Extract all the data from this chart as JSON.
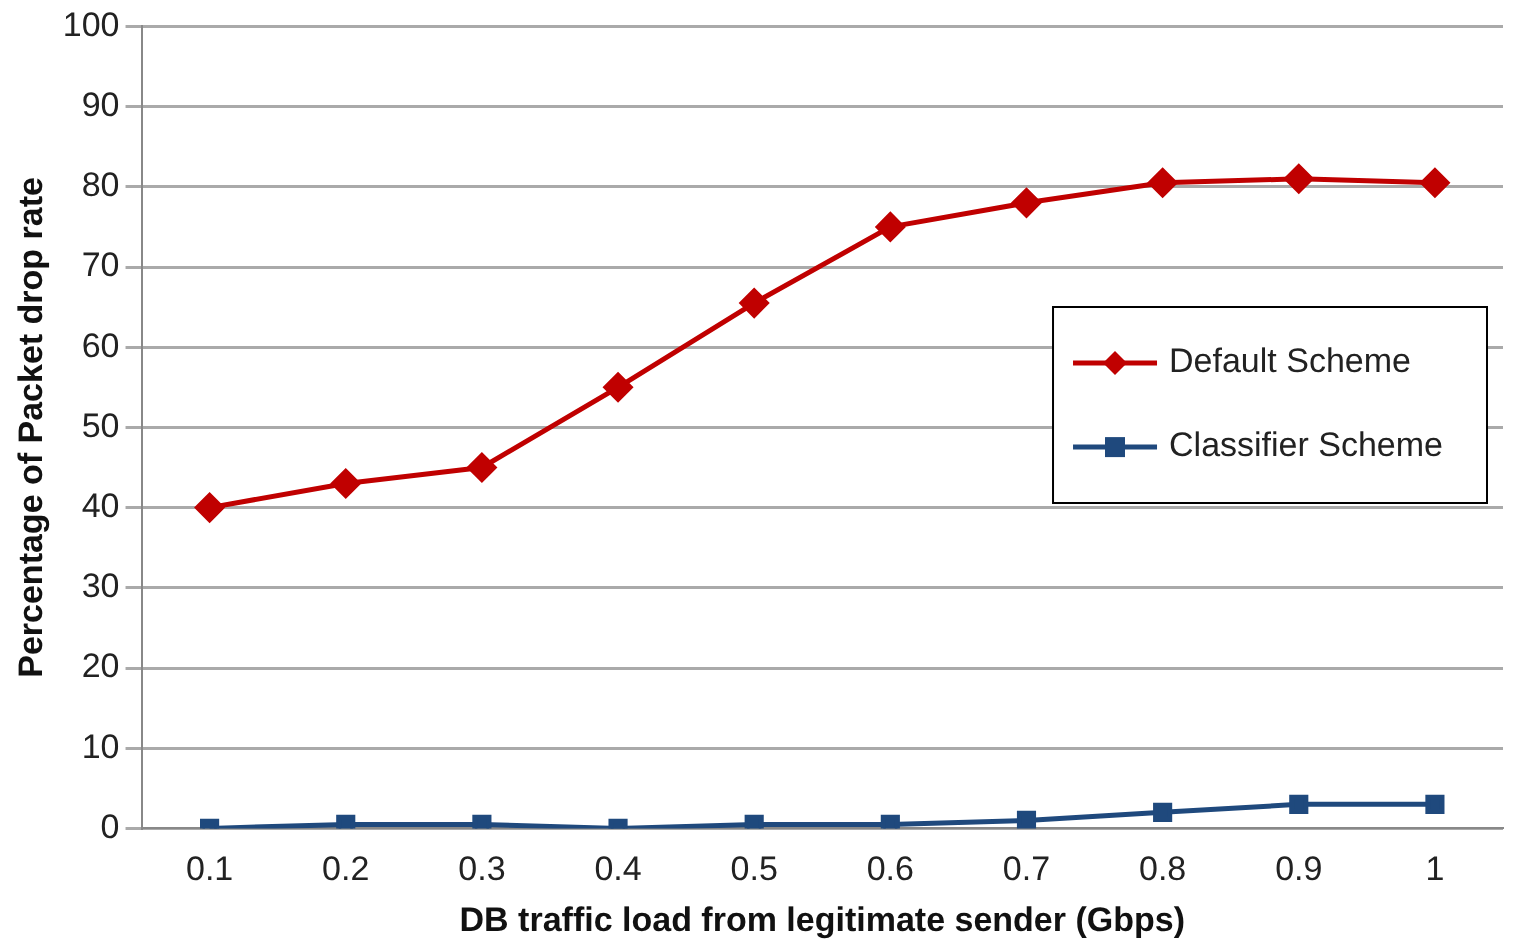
{
  "chart_data": {
    "type": "line",
    "xlabel": "DB traffic load from legitimate sender (Gbps)",
    "ylabel": "Percentage of Packet drop rate",
    "categories": [
      "0.1",
      "0.2",
      "0.3",
      "0.4",
      "0.5",
      "0.6",
      "0.7",
      "0.8",
      "0.9",
      "1"
    ],
    "series": [
      {
        "name": "Default Scheme",
        "color": "#c00000",
        "marker": "diamond",
        "values": [
          40,
          43,
          45,
          55,
          65.5,
          75,
          78,
          80.5,
          81,
          80.5
        ]
      },
      {
        "name": "Classifier Scheme",
        "color": "#1f497d",
        "marker": "square",
        "values": [
          0,
          0.5,
          0.5,
          0,
          0.5,
          0.5,
          1,
          2,
          3,
          3
        ]
      }
    ],
    "ylim": [
      0,
      100
    ],
    "yticks": [
      0,
      10,
      20,
      30,
      40,
      50,
      60,
      70,
      80,
      90,
      100
    ],
    "grid": "y",
    "legend": "right",
    "line_style": "solid"
  }
}
